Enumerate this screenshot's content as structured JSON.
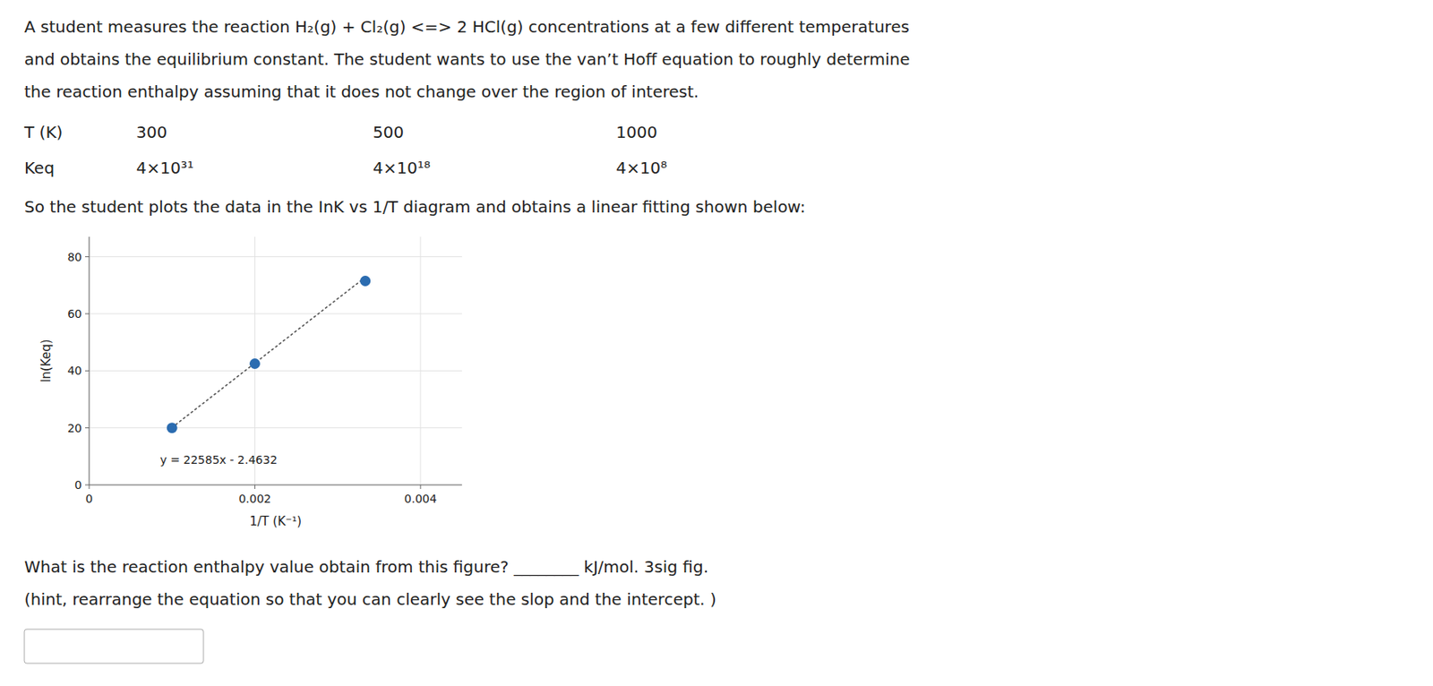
{
  "chart_data": {
    "type": "scatter",
    "title": [
      "A student measures the reaction H₂(g) + Cl₂(g) <=> 2 HCl(g) concentrations at a few different temperatures",
      "and obtains the equilibrium constant. The student wants to use the van’t Hoff equation to roughly determine",
      "the reaction enthalpy assuming that it does not change over the region of interest."
    ],
    "table": [
      {
        "label": "T (K)",
        "values": [
          300,
          500,
          1000
        ]
      },
      {
        "label": "Keq",
        "values": [
          4e+31,
          4e+18,
          400000000.0
        ],
        "value_labels": [
          "4×10³¹",
          "4×10¹⁸",
          "4×10⁸"
        ]
      }
    ],
    "subtitle": "So the student plots the data in the InK vs 1/T diagram and obtains a linear fitting shown below:",
    "x_label": "1/T (K⁻¹)",
    "y_label": "ln(Keq)",
    "series": [
      {
        "type": "scatter",
        "marker": "circle",
        "color": "#2b6cb0",
        "x": [
          0.001,
          0.002,
          0.003333
        ],
        "values": [
          20.0,
          42.5,
          71.5
        ]
      },
      {
        "type": "line",
        "line_style": "dotted",
        "color": "#555555",
        "x": [
          0.001,
          0.003333
        ],
        "values": [
          20.1218,
          72.812605
        ]
      }
    ],
    "annotations": [
      "y = 22585x - 2.4632"
    ],
    "xlim": [
      0,
      0.0045
    ],
    "ylim": [
      0,
      87
    ],
    "xticks": [
      0,
      0.002,
      0.004
    ],
    "yticks": [
      0,
      20,
      40,
      60,
      80
    ],
    "grid": true,
    "caption": [
      "What is the reaction enthalpy value obtain from this figure? ________ kJ/mol.  3sig fig.",
      "(hint, rearrange the equation so that you can clearly see the slop and the intercept. )"
    ]
  }
}
